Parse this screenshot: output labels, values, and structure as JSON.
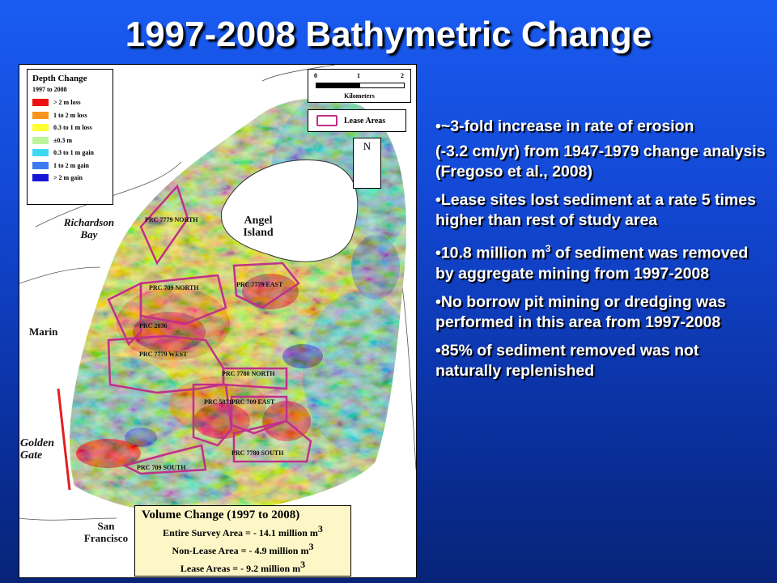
{
  "title": "1997-2008 Bathymetric Change",
  "legend": {
    "title": "Depth Change",
    "subtitle": "1997 to 2008",
    "items": [
      {
        "label": "> 2 m loss",
        "color": "#ee1111"
      },
      {
        "label": "1 to 2 m loss",
        "color": "#f7941d"
      },
      {
        "label": "0.3 to 1 m loss",
        "color": "#ffff33"
      },
      {
        "label": "±0.3 m",
        "color": "#bdf59c"
      },
      {
        "label": "0.3 to 1 m gain",
        "color": "#3fd8f2"
      },
      {
        "label": "1 to 2 m gain",
        "color": "#3d7bf2"
      },
      {
        "label": "> 2 m gain",
        "color": "#1616d8"
      }
    ]
  },
  "scale": {
    "ticks": [
      "0",
      "1",
      "2"
    ],
    "unit": "Kilometers"
  },
  "lease_legend": "Lease Areas",
  "north_label": "N",
  "places": {
    "richardson": "Richardson Bay",
    "angel": "Angel Island",
    "marin": "Marin",
    "golden_gate": "Golden Gate",
    "san_francisco": "San Francisco"
  },
  "lease_areas": {
    "prc7779north": "PRC 7779 NORTH",
    "prc709north": "PRC 709 NORTH",
    "prc7779east": "PRC 7779 EAST",
    "prc2036": "PRC 2036",
    "prc7779west": "PRC 7779 WEST",
    "prc7780north": "PRC 7780 NORTH",
    "prc5871": "PRC 5871",
    "prc709east": "PRC 709 EAST",
    "prc7780south": "PRC 7780 SOUTH",
    "prc709south": "PRC 709 SOUTH"
  },
  "volume": {
    "title": "Volume Change (1997 to 2008)",
    "entire": "Entire Survey Area = - 14.1 million m",
    "nonlease": "Non-Lease Area = - 4.9 million m",
    "lease": "Lease Areas = - 9.2 million m",
    "exp": "3"
  },
  "bullets": {
    "b1": "•~3-fold increase in rate of erosion",
    "b1b": "(-3.2 cm/yr) from 1947-1979 change analysis (Fregoso et al., 2008)",
    "b2": "•Lease sites lost sediment at a rate 5 times higher than rest of study area",
    "b3_pre": "•10.8 million m",
    "b3_sup": "3",
    "b3_post": " of sediment was removed by aggregate mining from 1997-2008",
    "b4": "•No borrow pit mining or dredging was performed in this area from 1997-2008",
    "b5": "•85% of sediment removed was not naturally replenished"
  }
}
